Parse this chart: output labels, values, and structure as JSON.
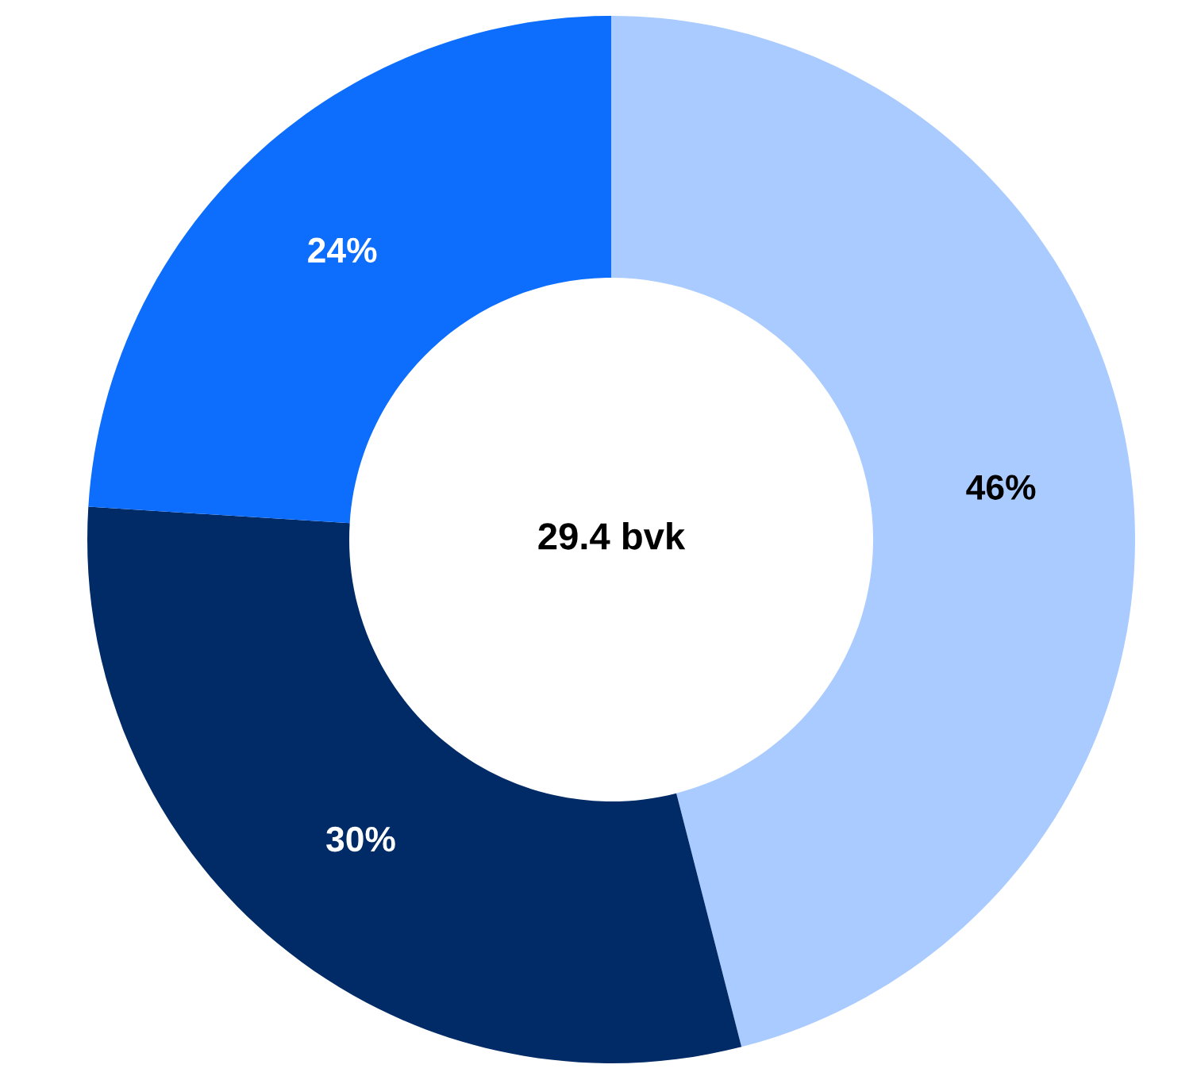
{
  "chart_data": {
    "type": "donut",
    "categories": [
      null,
      null,
      null
    ],
    "values": [
      46,
      30,
      24
    ],
    "colors": [
      "#a9cbff",
      "#002b67",
      "#0d6efd"
    ],
    "value_labels": [
      "46%",
      "30%",
      "24%"
    ],
    "annotations": [
      "29.4 bvk"
    ],
    "legend": false
  }
}
